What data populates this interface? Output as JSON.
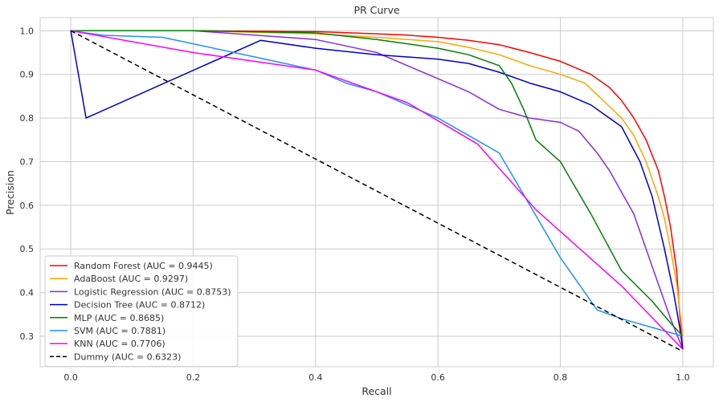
{
  "chart_data": {
    "type": "line",
    "title": "PR Curve",
    "xlabel": "Recall",
    "ylabel": "Precision",
    "xlim": [
      -0.05,
      1.05
    ],
    "ylim": [
      0.23,
      1.03
    ],
    "xticks": [
      0.0,
      0.2,
      0.4,
      0.6,
      0.8,
      1.0
    ],
    "xtick_labels": [
      "0.0",
      "0.2",
      "0.4",
      "0.6",
      "0.8",
      "1.0"
    ],
    "yticks": [
      0.3,
      0.4,
      0.5,
      0.6,
      0.7,
      0.8,
      0.9,
      1.0
    ],
    "ytick_labels": [
      "0.3",
      "0.4",
      "0.5",
      "0.6",
      "0.7",
      "0.8",
      "0.9",
      "1.0"
    ],
    "grid": true,
    "legend_position": "lower-left",
    "series": [
      {
        "name": "Random Forest (AUC = 0.9445)",
        "color": "#ff0000",
        "dash": "",
        "points": [
          [
            0,
            1.0
          ],
          [
            0.2,
            1.0
          ],
          [
            0.4,
            0.998
          ],
          [
            0.5,
            0.993
          ],
          [
            0.55,
            0.99
          ],
          [
            0.6,
            0.985
          ],
          [
            0.65,
            0.978
          ],
          [
            0.7,
            0.968
          ],
          [
            0.75,
            0.95
          ],
          [
            0.8,
            0.93
          ],
          [
            0.85,
            0.9
          ],
          [
            0.88,
            0.87
          ],
          [
            0.9,
            0.84
          ],
          [
            0.92,
            0.8
          ],
          [
            0.94,
            0.75
          ],
          [
            0.96,
            0.68
          ],
          [
            0.97,
            0.62
          ],
          [
            0.98,
            0.55
          ],
          [
            0.99,
            0.45
          ],
          [
            0.995,
            0.35
          ],
          [
            1.0,
            0.27
          ]
        ]
      },
      {
        "name": "AdaBoost (AUC = 0.9297)",
        "color": "#ffa500",
        "dash": "",
        "points": [
          [
            0,
            1.0
          ],
          [
            0.2,
            1.0
          ],
          [
            0.4,
            0.993
          ],
          [
            0.5,
            0.985
          ],
          [
            0.6,
            0.975
          ],
          [
            0.65,
            0.962
          ],
          [
            0.7,
            0.945
          ],
          [
            0.75,
            0.92
          ],
          [
            0.8,
            0.9
          ],
          [
            0.84,
            0.88
          ],
          [
            0.87,
            0.84
          ],
          [
            0.9,
            0.8
          ],
          [
            0.92,
            0.76
          ],
          [
            0.94,
            0.7
          ],
          [
            0.95,
            0.66
          ],
          [
            0.96,
            0.62
          ],
          [
            0.97,
            0.57
          ],
          [
            0.98,
            0.5
          ],
          [
            0.99,
            0.42
          ],
          [
            1.0,
            0.3
          ]
        ]
      },
      {
        "name": "Logistic Regression (AUC = 0.8753)",
        "color": "#8a2be2",
        "dash": "",
        "points": [
          [
            0,
            1.0
          ],
          [
            0.2,
            1.0
          ],
          [
            0.3,
            0.99
          ],
          [
            0.4,
            0.98
          ],
          [
            0.45,
            0.965
          ],
          [
            0.5,
            0.95
          ],
          [
            0.55,
            0.92
          ],
          [
            0.6,
            0.89
          ],
          [
            0.65,
            0.86
          ],
          [
            0.7,
            0.82
          ],
          [
            0.75,
            0.8
          ],
          [
            0.8,
            0.79
          ],
          [
            0.83,
            0.77
          ],
          [
            0.86,
            0.72
          ],
          [
            0.88,
            0.68
          ],
          [
            0.9,
            0.63
          ],
          [
            0.92,
            0.58
          ],
          [
            0.94,
            0.5
          ],
          [
            0.96,
            0.42
          ],
          [
            0.98,
            0.34
          ],
          [
            1.0,
            0.27
          ]
        ]
      },
      {
        "name": "Decision Tree (AUC = 0.8712)",
        "color": "#0000cd",
        "dash": "",
        "points": [
          [
            0,
            1.0
          ],
          [
            0.025,
            0.8
          ],
          [
            0.31,
            0.978
          ],
          [
            0.4,
            0.96
          ],
          [
            0.5,
            0.945
          ],
          [
            0.6,
            0.935
          ],
          [
            0.65,
            0.925
          ],
          [
            0.7,
            0.905
          ],
          [
            0.75,
            0.88
          ],
          [
            0.8,
            0.86
          ],
          [
            0.85,
            0.83
          ],
          [
            0.9,
            0.78
          ],
          [
            0.93,
            0.7
          ],
          [
            0.95,
            0.62
          ],
          [
            0.97,
            0.5
          ],
          [
            0.985,
            0.4
          ],
          [
            0.995,
            0.32
          ],
          [
            1.0,
            0.27
          ]
        ]
      },
      {
        "name": "MLP (AUC = 0.8685)",
        "color": "#008000",
        "dash": "",
        "points": [
          [
            0,
            1.0
          ],
          [
            0.2,
            1.0
          ],
          [
            0.4,
            0.995
          ],
          [
            0.5,
            0.98
          ],
          [
            0.6,
            0.96
          ],
          [
            0.65,
            0.945
          ],
          [
            0.7,
            0.92
          ],
          [
            0.72,
            0.88
          ],
          [
            0.74,
            0.82
          ],
          [
            0.76,
            0.75
          ],
          [
            0.8,
            0.7
          ],
          [
            0.85,
            0.58
          ],
          [
            0.9,
            0.45
          ],
          [
            0.95,
            0.38
          ],
          [
            0.98,
            0.33
          ],
          [
            1.0,
            0.3
          ]
        ]
      },
      {
        "name": "SVM (AUC = 0.7881)",
        "color": "#1e90ff",
        "dash": "",
        "points": [
          [
            0,
            1.0
          ],
          [
            0.05,
            0.99
          ],
          [
            0.15,
            0.985
          ],
          [
            0.2,
            0.97
          ],
          [
            0.3,
            0.94
          ],
          [
            0.4,
            0.91
          ],
          [
            0.45,
            0.88
          ],
          [
            0.5,
            0.86
          ],
          [
            0.55,
            0.83
          ],
          [
            0.6,
            0.8
          ],
          [
            0.65,
            0.76
          ],
          [
            0.7,
            0.72
          ],
          [
            0.75,
            0.6
          ],
          [
            0.8,
            0.48
          ],
          [
            0.86,
            0.36
          ],
          [
            0.9,
            0.34
          ],
          [
            0.95,
            0.32
          ],
          [
            1.0,
            0.3
          ]
        ]
      },
      {
        "name": "KNN (AUC = 0.7706)",
        "color": "#ff00ff",
        "dash": "",
        "points": [
          [
            0,
            1.0
          ],
          [
            0.2,
            0.95
          ],
          [
            0.4,
            0.91
          ],
          [
            0.55,
            0.835
          ],
          [
            0.665,
            0.74
          ],
          [
            0.76,
            0.59
          ],
          [
            0.9,
            0.415
          ],
          [
            1.0,
            0.27
          ]
        ]
      },
      {
        "name": "Dummy (AUC = 0.6323)",
        "color": "#000000",
        "dash": "6,4",
        "points": [
          [
            0,
            1.0
          ],
          [
            1.0,
            0.265
          ]
        ]
      }
    ]
  }
}
